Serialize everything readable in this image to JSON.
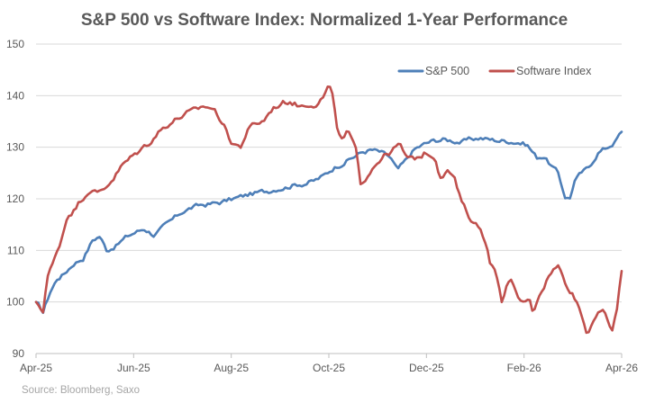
{
  "chart_data": {
    "type": "line",
    "title": "S&P 500 vs Software Index: Normalized 1-Year Performance",
    "xlabel": "",
    "ylabel": "",
    "source": "Source: Bloomberg, Saxo",
    "x_tick_labels": [
      "Apr-25",
      "Jun-25",
      "Aug-25",
      "Oct-25",
      "Dec-25",
      "Feb-26",
      "Apr-26"
    ],
    "y_ticks": [
      90,
      100,
      110,
      120,
      130,
      140,
      150
    ],
    "ylim": [
      90,
      150
    ],
    "grid": "horizontal",
    "legend_position": "top-right",
    "x_points": 250,
    "series": [
      {
        "name": "S&P 500",
        "color": "#4e7fb8",
        "anchors": [
          [
            0,
            100
          ],
          [
            3,
            98
          ],
          [
            6,
            102
          ],
          [
            9,
            104.5
          ],
          [
            12,
            105.5
          ],
          [
            16,
            107.5
          ],
          [
            20,
            108.5
          ],
          [
            24,
            112
          ],
          [
            27,
            112.8
          ],
          [
            30,
            110
          ],
          [
            34,
            111
          ],
          [
            38,
            112.5
          ],
          [
            42,
            113.5
          ],
          [
            46,
            114.2
          ],
          [
            50,
            113
          ],
          [
            54,
            114.5
          ],
          [
            58,
            116
          ],
          [
            62,
            117.5
          ],
          [
            66,
            118.3
          ],
          [
            70,
            118.8
          ],
          [
            74,
            119
          ],
          [
            78,
            119.3
          ],
          [
            82,
            119.8
          ],
          [
            86,
            120.3
          ],
          [
            90,
            120.8
          ],
          [
            94,
            121.2
          ],
          [
            98,
            121.5
          ],
          [
            102,
            122
          ],
          [
            106,
            122.3
          ],
          [
            110,
            122.8
          ],
          [
            114,
            123
          ],
          [
            118,
            123.5
          ],
          [
            122,
            124.5
          ],
          [
            126,
            126
          ],
          [
            130,
            127
          ],
          [
            134,
            128
          ],
          [
            138,
            129
          ],
          [
            142,
            129.5
          ],
          [
            146,
            129
          ],
          [
            150,
            128
          ],
          [
            153,
            125.5
          ],
          [
            156,
            127
          ],
          [
            160,
            129.5
          ],
          [
            164,
            130.5
          ],
          [
            168,
            131.2
          ],
          [
            172,
            131.5
          ],
          [
            176,
            131.3
          ],
          [
            180,
            131
          ],
          [
            184,
            131.5
          ],
          [
            188,
            131.8
          ],
          [
            192,
            131.5
          ],
          [
            196,
            131.3
          ],
          [
            200,
            131.2
          ],
          [
            204,
            131
          ],
          [
            208,
            130.5
          ],
          [
            212,
            128
          ],
          [
            215,
            128.3
          ],
          [
            218,
            126.5
          ],
          [
            221,
            125
          ],
          [
            224,
            120.5
          ],
          [
            226,
            120
          ],
          [
            228,
            123.5
          ],
          [
            231,
            125
          ],
          [
            234,
            126
          ],
          [
            236,
            127.5
          ],
          [
            238,
            129
          ],
          [
            242,
            130
          ],
          [
            245,
            131
          ],
          [
            248,
            133
          ]
        ],
        "noise": 0.8
      },
      {
        "name": "Software Index",
        "color": "#c0504d",
        "anchors": [
          [
            0,
            100
          ],
          [
            3,
            98
          ],
          [
            5,
            105
          ],
          [
            8,
            108
          ],
          [
            11,
            112
          ],
          [
            14,
            117
          ],
          [
            17,
            118
          ],
          [
            20,
            120
          ],
          [
            24,
            122
          ],
          [
            27,
            121
          ],
          [
            30,
            122
          ],
          [
            34,
            124
          ],
          [
            38,
            126.5
          ],
          [
            42,
            128
          ],
          [
            46,
            129.5
          ],
          [
            50,
            131
          ],
          [
            54,
            133
          ],
          [
            58,
            134.5
          ],
          [
            62,
            135.5
          ],
          [
            66,
            136.5
          ],
          [
            70,
            137
          ],
          [
            74,
            138
          ],
          [
            78,
            137.5
          ],
          [
            82,
            135
          ],
          [
            86,
            131
          ],
          [
            90,
            130
          ],
          [
            93,
            133
          ],
          [
            96,
            134.5
          ],
          [
            100,
            135
          ],
          [
            104,
            137.5
          ],
          [
            108,
            138.5
          ],
          [
            112,
            139
          ],
          [
            116,
            138
          ],
          [
            120,
            138.5
          ],
          [
            124,
            138.5
          ],
          [
            127,
            140
          ],
          [
            129,
            142
          ],
          [
            131,
            139
          ],
          [
            133,
            133
          ],
          [
            135,
            131
          ],
          [
            137,
            133
          ],
          [
            139,
            131.5
          ],
          [
            141,
            129
          ],
          [
            143,
            123
          ],
          [
            145,
            124
          ],
          [
            148,
            126
          ],
          [
            152,
            128
          ],
          [
            156,
            129
          ],
          [
            160,
            130.5
          ],
          [
            164,
            127.5
          ],
          [
            168,
            128
          ],
          [
            172,
            129
          ],
          [
            176,
            128
          ],
          [
            178,
            124.5
          ],
          [
            181,
            125.5
          ],
          [
            184,
            124.5
          ],
          [
            186,
            121
          ],
          [
            188,
            119
          ],
          [
            190,
            117
          ],
          [
            193,
            115.5
          ],
          [
            196,
            114
          ],
          [
            198,
            112
          ],
          [
            200,
            108
          ],
          [
            203,
            105
          ],
          [
            205,
            100
          ],
          [
            207,
            103
          ],
          [
            209,
            104
          ],
          [
            212,
            101
          ],
          [
            215,
            99.5
          ],
          [
            217,
            101
          ],
          [
            219,
            98
          ],
          [
            221,
            101
          ],
          [
            224,
            103.5
          ],
          [
            227,
            106
          ],
          [
            230,
            107
          ],
          [
            233,
            104
          ],
          [
            236,
            102
          ],
          [
            239,
            99.5
          ],
          [
            241,
            96.5
          ],
          [
            243,
            93.8
          ],
          [
            245,
            96.5
          ],
          [
            247,
            97.5
          ],
          [
            249,
            98
          ],
          [
            251,
            97.5
          ],
          [
            254,
            94
          ],
          [
            256,
            99
          ],
          [
            258,
            106
          ]
        ],
        "noise": 1.0
      }
    ]
  }
}
